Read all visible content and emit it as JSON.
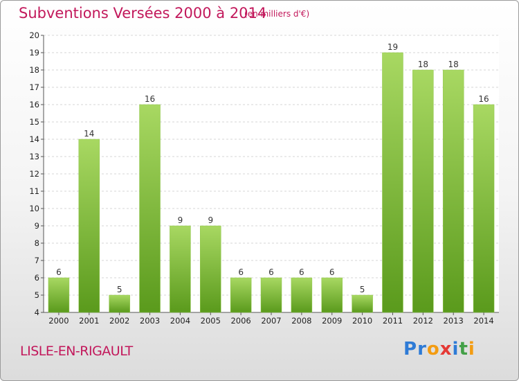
{
  "header": {
    "title": "Subventions Versées 2000 à 2014",
    "unit": "(en milliers d'€)"
  },
  "footer": {
    "town": "LISLE-EN-RIGAULT",
    "brand_letters": [
      "P",
      "r",
      "o",
      "x",
      "i",
      "t",
      "i"
    ],
    "brand_colors": [
      "#2e7bd6",
      "#2e7bd6",
      "#f39c12",
      "#e53935",
      "#2e7bd6",
      "#43a047",
      "#f39c12"
    ]
  },
  "colors": {
    "title": "#c2185b",
    "bar_light": "#a8d862",
    "bar_dark": "#5a9a1c"
  },
  "chart_data": {
    "type": "bar",
    "categories": [
      "2000",
      "2001",
      "2002",
      "2003",
      "2004",
      "2005",
      "2006",
      "2007",
      "2008",
      "2009",
      "2010",
      "2011",
      "2012",
      "2013",
      "2014"
    ],
    "values": [
      6,
      14,
      5,
      16,
      9,
      9,
      6,
      6,
      6,
      6,
      5,
      19,
      18,
      18,
      16
    ],
    "ylim": [
      4,
      20
    ],
    "yticks": [
      4,
      5,
      6,
      7,
      8,
      9,
      10,
      11,
      12,
      13,
      14,
      15,
      16,
      17,
      18,
      19,
      20
    ],
    "grid": true,
    "data_labels": true
  }
}
